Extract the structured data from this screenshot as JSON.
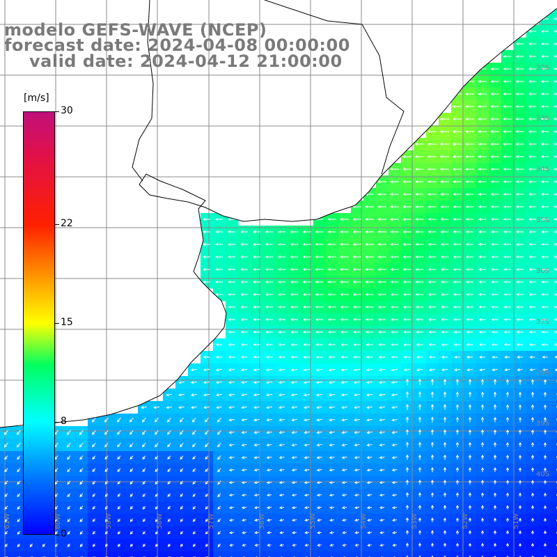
{
  "title": {
    "line1": "modelo GEFS-WAVE (NCEP)",
    "line2": "forecast date: 2024-04-08 00:00:00",
    "line3": "valid date: 2024-04-12 21:00:00"
  },
  "colorbar": {
    "unit": "[m/s]",
    "ticks": [
      "30",
      "22",
      "15",
      "8",
      "0"
    ],
    "tick_values": [
      30,
      22,
      15,
      8,
      0
    ],
    "range": [
      0,
      30
    ],
    "stops": [
      {
        "v": 0,
        "c": "#0000ff"
      },
      {
        "v": 4,
        "c": "#0078ff"
      },
      {
        "v": 8,
        "c": "#00ffff"
      },
      {
        "v": 12,
        "c": "#00ff60"
      },
      {
        "v": 15,
        "c": "#ffff00"
      },
      {
        "v": 18,
        "c": "#ffa000"
      },
      {
        "v": 22,
        "c": "#ff2000"
      },
      {
        "v": 27,
        "c": "#e0104a"
      },
      {
        "v": 30,
        "c": "#c0107a"
      }
    ]
  },
  "map": {
    "lat_labels": [
      "32S",
      "33S",
      "34S",
      "35S",
      "36S",
      "37S",
      "38S",
      "39S",
      "40S"
    ],
    "lon_labels": [
      "61W",
      "60W",
      "59W",
      "58W",
      "57W",
      "56W",
      "55W",
      "54W",
      "53W",
      "52W",
      "51W"
    ],
    "land_color": "#ffffff",
    "grid_color": "#888888",
    "arrow_color": "#ffffff"
  }
}
